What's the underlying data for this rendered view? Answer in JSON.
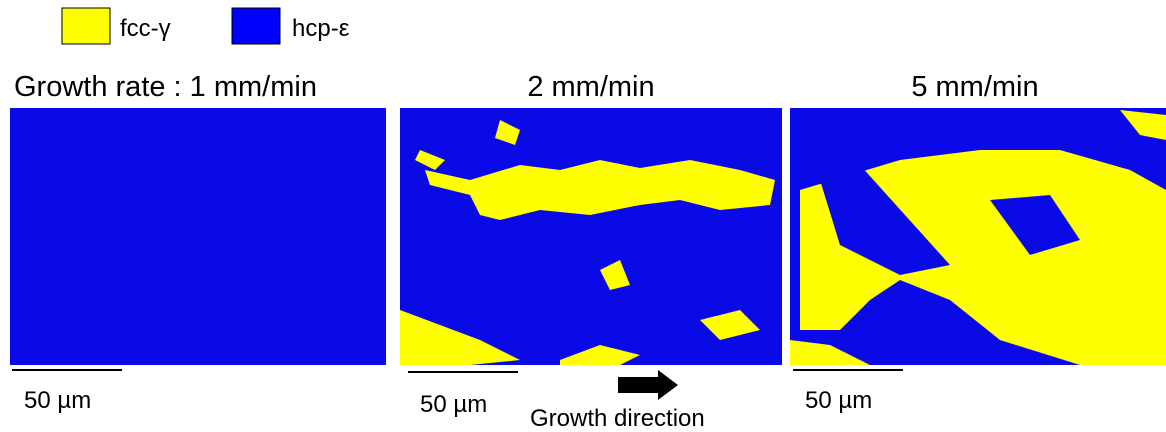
{
  "legend": [
    {
      "label": "fcc-γ",
      "color": "#ffff00"
    },
    {
      "label": "hcp-ε",
      "color": "#0000ff"
    }
  ],
  "panels": [
    {
      "title": "Growth rate : 1 mm/min",
      "scale_bar": "50 µm"
    },
    {
      "title": "2 mm/min",
      "scale_bar": "50 µm"
    },
    {
      "title": "5 mm/min",
      "scale_bar": "50 µm"
    }
  ],
  "growth_direction": "Growth direction"
}
